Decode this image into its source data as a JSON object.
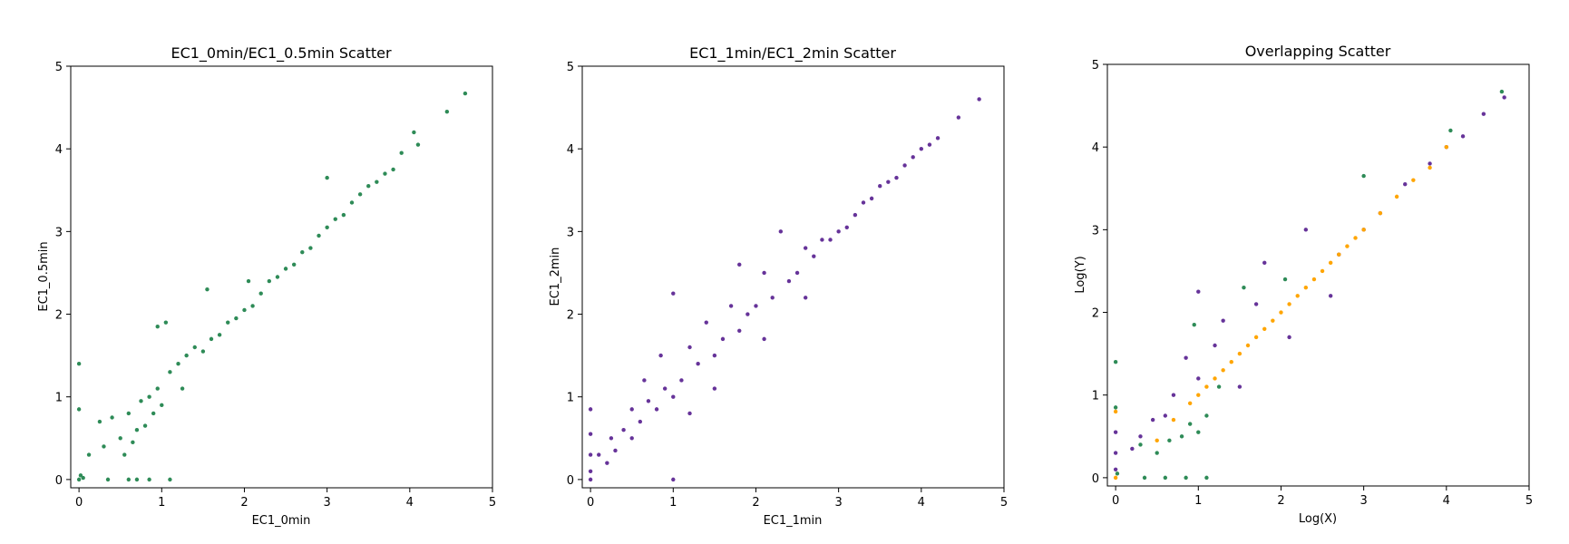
{
  "chart_data": [
    {
      "type": "scatter",
      "title": "EC1_0min/EC1_0.5min Scatter",
      "xlabel": "EC1_0min",
      "ylabel": "EC1_0.5min",
      "xlim": [
        -0.1,
        5
      ],
      "ylim": [
        -0.1,
        5
      ],
      "xticks": [
        "0",
        "1",
        "2",
        "3",
        "4",
        "5"
      ],
      "yticks": [
        "0",
        "1",
        "2",
        "3",
        "4",
        "5"
      ],
      "grid": false,
      "series": [
        {
          "color": "#2e8b57",
          "points": [
            [
              0.0,
              0.0
            ],
            [
              0.0,
              1.4
            ],
            [
              0.0,
              0.85
            ],
            [
              0.02,
              0.05
            ],
            [
              0.05,
              0.02
            ],
            [
              0.35,
              0.0
            ],
            [
              0.6,
              0.0
            ],
            [
              0.7,
              0.0
            ],
            [
              0.85,
              0.0
            ],
            [
              1.1,
              0.0
            ],
            [
              0.12,
              0.3
            ],
            [
              0.25,
              0.7
            ],
            [
              0.3,
              0.4
            ],
            [
              0.4,
              0.75
            ],
            [
              0.5,
              0.5
            ],
            [
              0.55,
              0.3
            ],
            [
              0.6,
              0.8
            ],
            [
              0.65,
              0.45
            ],
            [
              0.7,
              0.6
            ],
            [
              0.75,
              0.95
            ],
            [
              0.8,
              0.65
            ],
            [
              0.85,
              1.0
            ],
            [
              0.9,
              0.8
            ],
            [
              0.95,
              1.1
            ],
            [
              1.0,
              0.9
            ],
            [
              0.95,
              1.85
            ],
            [
              1.05,
              1.9
            ],
            [
              1.1,
              1.3
            ],
            [
              1.2,
              1.4
            ],
            [
              1.3,
              1.5
            ],
            [
              1.25,
              1.1
            ],
            [
              1.4,
              1.6
            ],
            [
              1.5,
              1.55
            ],
            [
              1.55,
              2.3
            ],
            [
              1.6,
              1.7
            ],
            [
              1.7,
              1.75
            ],
            [
              1.8,
              1.9
            ],
            [
              1.9,
              1.95
            ],
            [
              2.0,
              2.05
            ],
            [
              2.05,
              2.4
            ],
            [
              2.1,
              2.1
            ],
            [
              2.2,
              2.25
            ],
            [
              2.3,
              2.4
            ],
            [
              2.4,
              2.45
            ],
            [
              2.5,
              2.55
            ],
            [
              2.6,
              2.6
            ],
            [
              2.7,
              2.75
            ],
            [
              2.8,
              2.8
            ],
            [
              2.9,
              2.95
            ],
            [
              3.0,
              3.05
            ],
            [
              3.0,
              3.65
            ],
            [
              3.1,
              3.15
            ],
            [
              3.2,
              3.2
            ],
            [
              3.3,
              3.35
            ],
            [
              3.4,
              3.45
            ],
            [
              3.5,
              3.55
            ],
            [
              3.6,
              3.6
            ],
            [
              3.7,
              3.7
            ],
            [
              3.8,
              3.75
            ],
            [
              3.9,
              3.95
            ],
            [
              4.05,
              4.2
            ],
            [
              4.1,
              4.05
            ],
            [
              4.45,
              4.45
            ],
            [
              4.67,
              4.67
            ]
          ]
        }
      ]
    },
    {
      "type": "scatter",
      "title": "EC1_1min/EC1_2min Scatter",
      "xlabel": "EC1_1min",
      "ylabel": "EC1_2min",
      "xlim": [
        -0.1,
        5
      ],
      "ylim": [
        -0.1,
        5
      ],
      "xticks": [
        "0",
        "1",
        "2",
        "3",
        "4",
        "5"
      ],
      "yticks": [
        "0",
        "1",
        "2",
        "3",
        "4",
        "5"
      ],
      "grid": false,
      "series": [
        {
          "color": "#663399",
          "points": [
            [
              0.0,
              0.0
            ],
            [
              0.0,
              0.1
            ],
            [
              0.0,
              0.3
            ],
            [
              0.0,
              0.55
            ],
            [
              0.0,
              0.85
            ],
            [
              0.1,
              0.3
            ],
            [
              0.2,
              0.2
            ],
            [
              0.25,
              0.5
            ],
            [
              0.3,
              0.35
            ],
            [
              0.4,
              0.6
            ],
            [
              0.5,
              0.5
            ],
            [
              0.5,
              0.85
            ],
            [
              0.6,
              0.7
            ],
            [
              0.65,
              1.2
            ],
            [
              0.7,
              0.95
            ],
            [
              0.8,
              0.85
            ],
            [
              0.85,
              1.5
            ],
            [
              0.9,
              1.1
            ],
            [
              1.0,
              1.0
            ],
            [
              1.0,
              2.25
            ],
            [
              1.1,
              1.2
            ],
            [
              1.2,
              1.6
            ],
            [
              1.2,
              0.8
            ],
            [
              1.3,
              1.4
            ],
            [
              1.4,
              1.9
            ],
            [
              1.5,
              1.5
            ],
            [
              1.5,
              1.1
            ],
            [
              1.6,
              1.7
            ],
            [
              1.7,
              2.1
            ],
            [
              1.8,
              1.8
            ],
            [
              1.8,
              2.6
            ],
            [
              1.9,
              2.0
            ],
            [
              2.0,
              2.1
            ],
            [
              2.1,
              2.5
            ],
            [
              2.1,
              1.7
            ],
            [
              2.2,
              2.2
            ],
            [
              2.3,
              3.0
            ],
            [
              2.4,
              2.4
            ],
            [
              2.5,
              2.5
            ],
            [
              2.6,
              2.8
            ],
            [
              2.6,
              2.2
            ],
            [
              2.7,
              2.7
            ],
            [
              2.8,
              2.9
            ],
            [
              2.9,
              2.9
            ],
            [
              3.0,
              3.0
            ],
            [
              3.1,
              3.05
            ],
            [
              3.2,
              3.2
            ],
            [
              3.3,
              3.35
            ],
            [
              3.4,
              3.4
            ],
            [
              3.5,
              3.55
            ],
            [
              3.6,
              3.6
            ],
            [
              3.7,
              3.65
            ],
            [
              3.8,
              3.8
            ],
            [
              3.9,
              3.9
            ],
            [
              4.0,
              4.0
            ],
            [
              4.1,
              4.05
            ],
            [
              4.2,
              4.13
            ],
            [
              4.45,
              4.38
            ],
            [
              4.7,
              4.6
            ],
            [
              1.0,
              0.0
            ]
          ]
        }
      ]
    },
    {
      "type": "scatter",
      "title": "Overlapping Scatter",
      "xlabel": "Log(X)",
      "ylabel": "Log(Y)",
      "xlim": [
        -0.1,
        5
      ],
      "ylim": [
        -0.1,
        5
      ],
      "xticks": [
        "0",
        "1",
        "2",
        "3",
        "4",
        "5"
      ],
      "yticks": [
        "0",
        "1",
        "2",
        "3",
        "4",
        "5"
      ],
      "grid": false,
      "series": [
        {
          "color": "#663399",
          "points": [
            [
              0.0,
              0.1
            ],
            [
              0.0,
              0.3
            ],
            [
              0.0,
              0.55
            ],
            [
              0.2,
              0.35
            ],
            [
              0.3,
              0.5
            ],
            [
              0.45,
              0.7
            ],
            [
              0.6,
              0.75
            ],
            [
              0.7,
              1.0
            ],
            [
              0.85,
              1.45
            ],
            [
              1.0,
              1.2
            ],
            [
              1.0,
              2.25
            ],
            [
              1.2,
              1.6
            ],
            [
              1.3,
              1.9
            ],
            [
              1.5,
              1.1
            ],
            [
              1.7,
              2.1
            ],
            [
              1.8,
              2.6
            ],
            [
              2.1,
              1.7
            ],
            [
              2.3,
              3.0
            ],
            [
              2.6,
              2.2
            ],
            [
              2.7,
              2.7
            ],
            [
              3.0,
              3.0
            ],
            [
              3.2,
              3.2
            ],
            [
              3.5,
              3.55
            ],
            [
              3.8,
              3.8
            ],
            [
              4.0,
              4.0
            ],
            [
              4.2,
              4.13
            ],
            [
              4.45,
              4.4
            ],
            [
              4.7,
              4.6
            ]
          ]
        },
        {
          "color": "#2e8b57",
          "points": [
            [
              0.0,
              1.4
            ],
            [
              0.0,
              0.85
            ],
            [
              0.02,
              0.05
            ],
            [
              0.35,
              0.0
            ],
            [
              0.6,
              0.0
            ],
            [
              0.85,
              0.0
            ],
            [
              1.1,
              0.0
            ],
            [
              0.3,
              0.4
            ],
            [
              0.5,
              0.3
            ],
            [
              0.65,
              0.45
            ],
            [
              0.8,
              0.5
            ],
            [
              0.9,
              0.65
            ],
            [
              1.0,
              0.55
            ],
            [
              1.1,
              0.75
            ],
            [
              1.25,
              1.1
            ],
            [
              0.95,
              1.85
            ],
            [
              1.55,
              2.3
            ],
            [
              2.05,
              2.4
            ],
            [
              3.0,
              3.65
            ],
            [
              4.05,
              4.2
            ],
            [
              4.67,
              4.67
            ]
          ]
        },
        {
          "color": "#ffa500",
          "points": [
            [
              0.0,
              0.0
            ],
            [
              0.0,
              0.8
            ],
            [
              0.5,
              0.45
            ],
            [
              0.7,
              0.7
            ],
            [
              0.9,
              0.9
            ],
            [
              1.0,
              1.0
            ],
            [
              1.1,
              1.1
            ],
            [
              1.2,
              1.2
            ],
            [
              1.3,
              1.3
            ],
            [
              1.4,
              1.4
            ],
            [
              1.5,
              1.5
            ],
            [
              1.6,
              1.6
            ],
            [
              1.7,
              1.7
            ],
            [
              1.8,
              1.8
            ],
            [
              1.9,
              1.9
            ],
            [
              2.0,
              2.0
            ],
            [
              2.1,
              2.1
            ],
            [
              2.2,
              2.2
            ],
            [
              2.3,
              2.3
            ],
            [
              2.4,
              2.4
            ],
            [
              2.5,
              2.5
            ],
            [
              2.6,
              2.6
            ],
            [
              2.7,
              2.7
            ],
            [
              2.8,
              2.8
            ],
            [
              2.9,
              2.9
            ],
            [
              3.0,
              3.0
            ],
            [
              3.2,
              3.2
            ],
            [
              3.4,
              3.4
            ],
            [
              3.6,
              3.6
            ],
            [
              3.8,
              3.75
            ],
            [
              4.0,
              4.0
            ]
          ]
        }
      ]
    }
  ]
}
